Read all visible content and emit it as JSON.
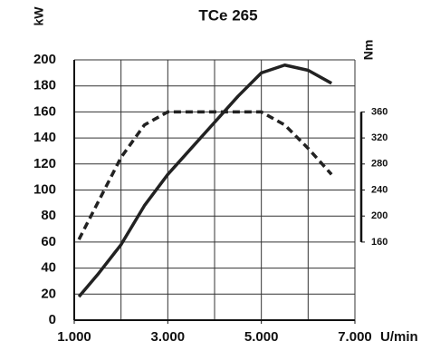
{
  "chart_data": {
    "type": "line",
    "title": "TCe 265",
    "y_label": "kW",
    "y2_label": "Nm",
    "x_label": "U/min",
    "xlim": [
      1000,
      7000
    ],
    "xticks": [
      {
        "value": 1000,
        "label": "1.000"
      },
      {
        "value": 3000,
        "label": "3.000"
      },
      {
        "value": 5000,
        "label": "5.000"
      },
      {
        "value": 7000,
        "label": "7.000"
      }
    ],
    "xgrid": [
      1000,
      2000,
      3000,
      4000,
      5000,
      6000,
      7000
    ],
    "ylim": [
      0,
      200
    ],
    "yticks": [
      0,
      20,
      40,
      60,
      80,
      100,
      120,
      140,
      160,
      180,
      200
    ],
    "y2lim": [
      40,
      440
    ],
    "y2ticks": [
      160,
      200,
      240,
      280,
      320,
      360
    ],
    "grid": true,
    "series": [
      {
        "color": "#222222",
        "dashed": false,
        "axis": "y",
        "x": [
          1100,
          1500,
          2000,
          2500,
          3000,
          3500,
          4000,
          4500,
          5000,
          5500,
          6000,
          6500
        ],
        "values": [
          18,
          35,
          58,
          88,
          112,
          132,
          152,
          172,
          190,
          196,
          192,
          182
        ]
      },
      {
        "color": "#222222",
        "dashed": true,
        "axis": "y2",
        "x": [
          1100,
          1500,
          2000,
          2500,
          3000,
          3500,
          4000,
          4500,
          5000,
          5500,
          6000,
          6500
        ],
        "values": [
          164,
          220,
          290,
          340,
          360,
          360,
          360,
          360,
          360,
          340,
          304,
          264
        ]
      }
    ]
  }
}
